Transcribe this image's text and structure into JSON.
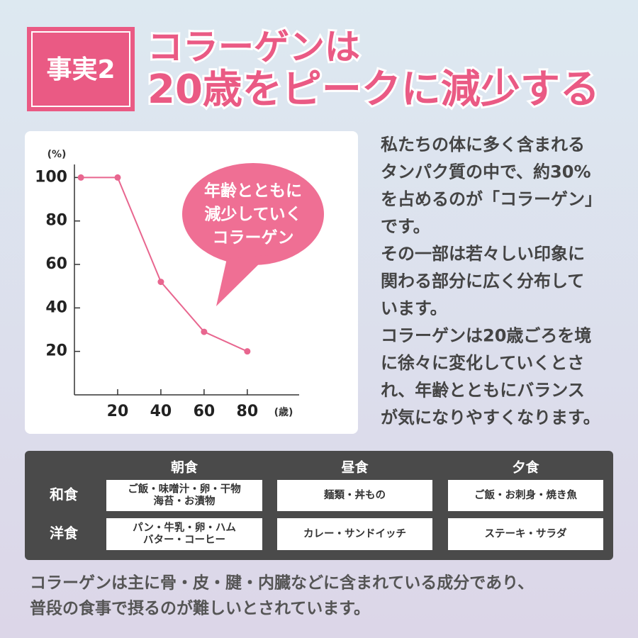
{
  "badge": "事実2",
  "headline": [
    "コラーゲンは",
    "20歳をピークに減少する"
  ],
  "chart_data": {
    "type": "line",
    "y_unit": "(%)",
    "x_unit": "(歳)",
    "x": [
      3,
      20,
      40,
      60,
      80
    ],
    "values": [
      100,
      100,
      52,
      29,
      20
    ],
    "color": "#e8668f",
    "xlim": [
      0,
      104
    ],
    "ylim": [
      0,
      106
    ],
    "xticks": [
      20,
      40,
      60,
      80
    ],
    "yticks": [
      20,
      40,
      60,
      80,
      100
    ],
    "annotation": [
      "年齢とともに",
      "減少していく",
      "コラーゲン"
    ]
  },
  "description": [
    "私たちの体に多く含まれる",
    "タンパク質の中で、約30%",
    "を占めるのが「コラーゲン」",
    "です。",
    "その一部は若々しい印象に",
    "関わる部分に広く分布して",
    "います。",
    "コラーゲンは20歳ごろを境",
    "に徐々に変化していくとさ",
    "れ、年齢とともにバランス",
    "が気になりやすくなります。"
  ],
  "table": {
    "header": [
      "朝食",
      "昼食",
      "夕食"
    ],
    "rows": [
      {
        "label": "和食",
        "cells": [
          [
            "ご飯・味噌汁・卵・干物",
            "海苔・お漬物"
          ],
          [
            "麺類・丼もの"
          ],
          [
            "ご飯・お刺身・焼き魚"
          ]
        ]
      },
      {
        "label": "洋食",
        "cells": [
          [
            "パン・牛乳・卵・ハム",
            "バター・コーヒー"
          ],
          [
            "カレー・サンドイッチ"
          ],
          [
            "ステーキ・サラダ"
          ]
        ]
      }
    ]
  },
  "footer": [
    "コラーゲンは主に骨・皮・腱・内臓などに含まれている成分であり、",
    "普段の食事で摂るのが難しいとされています。"
  ]
}
